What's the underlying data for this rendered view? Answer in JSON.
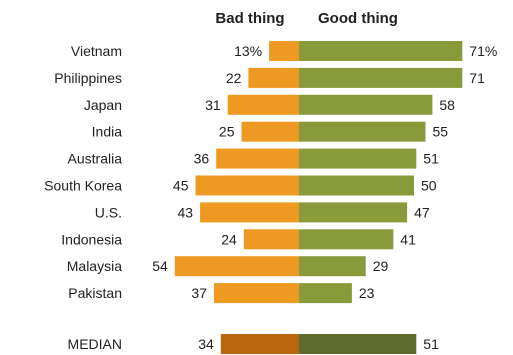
{
  "chart_data": {
    "type": "bar",
    "orientation": "diverging-horizontal",
    "headers": {
      "bad": "Bad thing",
      "good": "Good thing"
    },
    "categories": [
      "Vietnam",
      "Philippines",
      "Japan",
      "India",
      "Australia",
      "South Korea",
      "U.S.",
      "Indonesia",
      "Malaysia",
      "Pakistan"
    ],
    "series": [
      {
        "key": "bad",
        "values": [
          13,
          22,
          31,
          25,
          36,
          45,
          43,
          24,
          54,
          37
        ]
      },
      {
        "key": "good",
        "values": [
          71,
          71,
          58,
          55,
          51,
          50,
          47,
          41,
          29,
          23
        ]
      }
    ],
    "value_labels": {
      "bad": [
        "13%",
        "22",
        "31",
        "25",
        "36",
        "45",
        "43",
        "24",
        "54",
        "37"
      ],
      "good": [
        "71%",
        "71",
        "58",
        "55",
        "51",
        "50",
        "47",
        "41",
        "29",
        "23"
      ]
    },
    "median": {
      "label": "MEDIAN",
      "bad": 34,
      "good": 51,
      "bad_label": "34",
      "good_label": "51"
    },
    "colors": {
      "bad": "#ee9a22",
      "good": "#889a3a",
      "median_bad": "#b8650e",
      "median_good": "#5e6b2e"
    },
    "grid": false,
    "legend": "none"
  }
}
